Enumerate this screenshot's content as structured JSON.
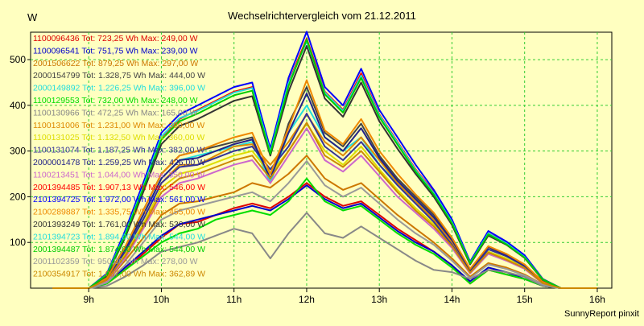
{
  "chart_data": {
    "type": "line",
    "title": "Wechselrichtervergleich vom 21.12.2011",
    "ylabel": "W",
    "xlabel": "",
    "footer": "SunnyReport pinxit",
    "ylim": [
      0,
      560
    ],
    "xlim": [
      8.2,
      16.2
    ],
    "grid": true,
    "legend_position": "top-left",
    "x_ticks": [
      {
        "value": 9,
        "label": "9h"
      },
      {
        "value": 10,
        "label": "10h"
      },
      {
        "value": 11,
        "label": "11h"
      },
      {
        "value": 12,
        "label": "12h"
      },
      {
        "value": 13,
        "label": "13h"
      },
      {
        "value": 14,
        "label": "14h"
      },
      {
        "value": 15,
        "label": "15h"
      },
      {
        "value": 16,
        "label": "16h"
      }
    ],
    "y_ticks": [
      {
        "value": 100,
        "label": "100"
      },
      {
        "value": 200,
        "label": "200"
      },
      {
        "value": 300,
        "label": "300"
      },
      {
        "value": 400,
        "label": "400"
      },
      {
        "value": 500,
        "label": "500"
      }
    ],
    "x": [
      8.5,
      8.75,
      9.0,
      9.25,
      9.5,
      9.75,
      10.0,
      10.25,
      10.5,
      10.75,
      11.0,
      11.25,
      11.5,
      11.75,
      12.0,
      12.25,
      12.5,
      12.75,
      13.0,
      13.25,
      13.5,
      13.75,
      14.0,
      14.25,
      14.5,
      14.75,
      15.0,
      15.25,
      15.5,
      15.75,
      16.0
    ],
    "series": [
      {
        "name": "1100096436 Tot: 723,25 Wh Max: 249,00 W",
        "color": "#dd0000",
        "values": [
          0,
          0,
          0,
          10,
          40,
          75,
          110,
          140,
          145,
          160,
          175,
          185,
          175,
          200,
          230,
          200,
          180,
          190,
          160,
          130,
          105,
          80,
          50,
          10,
          40,
          30,
          20,
          5,
          0,
          0,
          0
        ]
      },
      {
        "name": "1100096541 Tot: 751,75 Wh Max: 239,00 W",
        "color": "#0000cc",
        "values": [
          0,
          0,
          0,
          10,
          45,
          80,
          115,
          140,
          150,
          160,
          170,
          180,
          170,
          195,
          225,
          195,
          175,
          185,
          155,
          125,
          100,
          80,
          50,
          15,
          45,
          35,
          20,
          5,
          0,
          0,
          0
        ]
      },
      {
        "name": "2001506622 Tot: 879,25 Wh Max: 297,00 W",
        "color": "#cc7700",
        "values": [
          0,
          0,
          0,
          15,
          60,
          110,
          160,
          185,
          190,
          200,
          210,
          230,
          220,
          250,
          290,
          240,
          215,
          230,
          195,
          160,
          130,
          100,
          65,
          25,
          55,
          45,
          30,
          8,
          0,
          0,
          0
        ]
      },
      {
        "name": "2000154799 Tot: 1.328,75 Wh Max: 444,00 W",
        "color": "#444444",
        "values": [
          0,
          0,
          0,
          25,
          90,
          170,
          250,
          290,
          300,
          310,
          320,
          330,
          230,
          360,
          440,
          340,
          310,
          360,
          290,
          240,
          200,
          160,
          110,
          40,
          90,
          70,
          50,
          15,
          0,
          0,
          0
        ]
      },
      {
        "name": "2000149892 Tot: 1.226,25 Wh Max: 396,00 W",
        "color": "#22dddd",
        "values": [
          0,
          0,
          0,
          20,
          80,
          160,
          240,
          280,
          290,
          300,
          310,
          320,
          230,
          340,
          400,
          330,
          300,
          330,
          270,
          230,
          190,
          150,
          100,
          35,
          80,
          65,
          45,
          12,
          0,
          0,
          0
        ]
      },
      {
        "name": "1100129553 Tot: 732,00 Wh Max: 248,00 W",
        "color": "#00dd00",
        "values": [
          0,
          0,
          0,
          10,
          40,
          70,
          100,
          120,
          130,
          150,
          160,
          170,
          160,
          190,
          240,
          190,
          170,
          180,
          150,
          120,
          95,
          75,
          45,
          10,
          40,
          30,
          20,
          5,
          0,
          0,
          0
        ]
      },
      {
        "name": "1100130966 Tot: 472,25 Wh Max: 165,00 W",
        "color": "#888888",
        "values": [
          0,
          0,
          0,
          5,
          25,
          50,
          80,
          90,
          100,
          115,
          130,
          120,
          65,
          120,
          165,
          120,
          110,
          135,
          110,
          85,
          60,
          40,
          35,
          20,
          40,
          35,
          25,
          5,
          0,
          0,
          0
        ]
      },
      {
        "name": "1100131006 Tot: 1.231,00 Wh Max: 380,00 W",
        "color": "#dd8800",
        "values": [
          0,
          0,
          0,
          20,
          80,
          150,
          230,
          270,
          270,
          290,
          310,
          315,
          270,
          320,
          380,
          320,
          290,
          330,
          280,
          230,
          190,
          150,
          100,
          40,
          85,
          70,
          50,
          15,
          0,
          0,
          0
        ]
      },
      {
        "name": "1100131025 Tot: 1.132,50 Wh Max: 360,00 W",
        "color": "#dddd00",
        "values": [
          0,
          0,
          0,
          20,
          75,
          140,
          220,
          250,
          260,
          275,
          290,
          300,
          250,
          300,
          360,
          300,
          270,
          310,
          260,
          215,
          175,
          140,
          95,
          35,
          80,
          65,
          45,
          12,
          0,
          0,
          0
        ]
      },
      {
        "name": "1100131074 Tot: 1.187,25 Wh Max: 382,00 W",
        "color": "#333399",
        "values": [
          0,
          0,
          0,
          20,
          80,
          150,
          230,
          265,
          270,
          285,
          300,
          310,
          260,
          310,
          382,
          310,
          280,
          320,
          270,
          225,
          185,
          145,
          95,
          35,
          85,
          70,
          48,
          12,
          0,
          0,
          0
        ]
      },
      {
        "name": "2000001478 Tot: 1.259,25 Wh Max: 426,00 W",
        "color": "#222288",
        "values": [
          0,
          0,
          0,
          22,
          85,
          160,
          240,
          280,
          285,
          300,
          315,
          325,
          240,
          340,
          426,
          330,
          300,
          350,
          285,
          235,
          195,
          155,
          105,
          40,
          90,
          72,
          50,
          14,
          0,
          0,
          0
        ]
      },
      {
        "name": "1100213451 Tot: 1.044,00 Wh Max: 350,00 W",
        "color": "#cc66cc",
        "values": [
          0,
          0,
          0,
          15,
          65,
          130,
          200,
          230,
          240,
          255,
          270,
          280,
          230,
          290,
          350,
          280,
          255,
          290,
          245,
          200,
          165,
          130,
          88,
          32,
          75,
          60,
          42,
          10,
          0,
          0,
          0
        ]
      },
      {
        "name": "2001394485 Tot: 1.907,13 Wh Max: 546,00 W",
        "color": "#ff0000",
        "values": [
          0,
          0,
          0,
          30,
          120,
          220,
          330,
          370,
          390,
          410,
          430,
          440,
          300,
          450,
          546,
          430,
          390,
          470,
          380,
          320,
          260,
          210,
          145,
          55,
          120,
          100,
          70,
          20,
          0,
          0,
          0
        ]
      },
      {
        "name": "2101394725 Tot: 1.972,00 Wh Max: 561,00 W",
        "color": "#0000ff",
        "values": [
          0,
          0,
          0,
          32,
          125,
          230,
          340,
          380,
          400,
          420,
          440,
          450,
          305,
          460,
          561,
          440,
          400,
          480,
          390,
          330,
          270,
          215,
          150,
          58,
          125,
          102,
          72,
          20,
          0,
          0,
          0
        ]
      },
      {
        "name": "2100289887 Tot: 1.335,75 Wh Max: 455,00 W",
        "color": "#ee8800",
        "values": [
          0,
          0,
          0,
          22,
          90,
          170,
          250,
          290,
          300,
          315,
          330,
          340,
          250,
          350,
          455,
          345,
          315,
          370,
          300,
          250,
          205,
          165,
          110,
          42,
          92,
          75,
          52,
          14,
          0,
          0,
          0
        ]
      },
      {
        "name": "2001393249 Tot: 1.761,00 Wh Max: 530,00 W",
        "color": "#333333",
        "values": [
          0,
          0,
          0,
          28,
          110,
          210,
          315,
          355,
          370,
          390,
          410,
          420,
          290,
          430,
          530,
          415,
          375,
          450,
          365,
          305,
          250,
          200,
          138,
          52,
          115,
          95,
          66,
          18,
          0,
          0,
          0
        ]
      },
      {
        "name": "2101394723 Tot: 1.894,00 Wh Max: 544,00 W",
        "color": "#22dddd",
        "values": [
          0,
          0,
          0,
          30,
          118,
          222,
          332,
          372,
          388,
          408,
          428,
          438,
          298,
          448,
          540,
          428,
          388,
          465,
          378,
          318,
          258,
          208,
          144,
          55,
          120,
          98,
          68,
          19,
          0,
          0,
          0
        ]
      },
      {
        "name": "2001394487 Tot: 1.874,00 Wh Max: 544,00 W",
        "color": "#00cc00",
        "values": [
          0,
          0,
          0,
          29,
          115,
          218,
          325,
          365,
          382,
          402,
          422,
          432,
          294,
          442,
          544,
          424,
          384,
          460,
          374,
          314,
          255,
          205,
          142,
          54,
          118,
          96,
          67,
          19,
          0,
          0,
          0
        ]
      },
      {
        "name": "2001102359 Tot: 950,00 Wh Max: 278,00 W",
        "color": "#999999",
        "values": [
          0,
          0,
          0,
          12,
          50,
          100,
          150,
          170,
          180,
          190,
          200,
          210,
          190,
          230,
          278,
          225,
          200,
          220,
          185,
          150,
          120,
          95,
          60,
          22,
          52,
          42,
          28,
          8,
          0,
          0,
          0
        ]
      },
      {
        "name": "2100354917 Tot: 1.087,00 Wh Max: 362,89 W",
        "color": "#cc8800",
        "values": [
          0,
          0,
          0,
          18,
          70,
          135,
          210,
          240,
          250,
          265,
          280,
          290,
          240,
          300,
          362,
          290,
          265,
          300,
          255,
          210,
          170,
          135,
          92,
          34,
          78,
          62,
          44,
          11,
          0,
          0,
          0
        ]
      }
    ]
  }
}
